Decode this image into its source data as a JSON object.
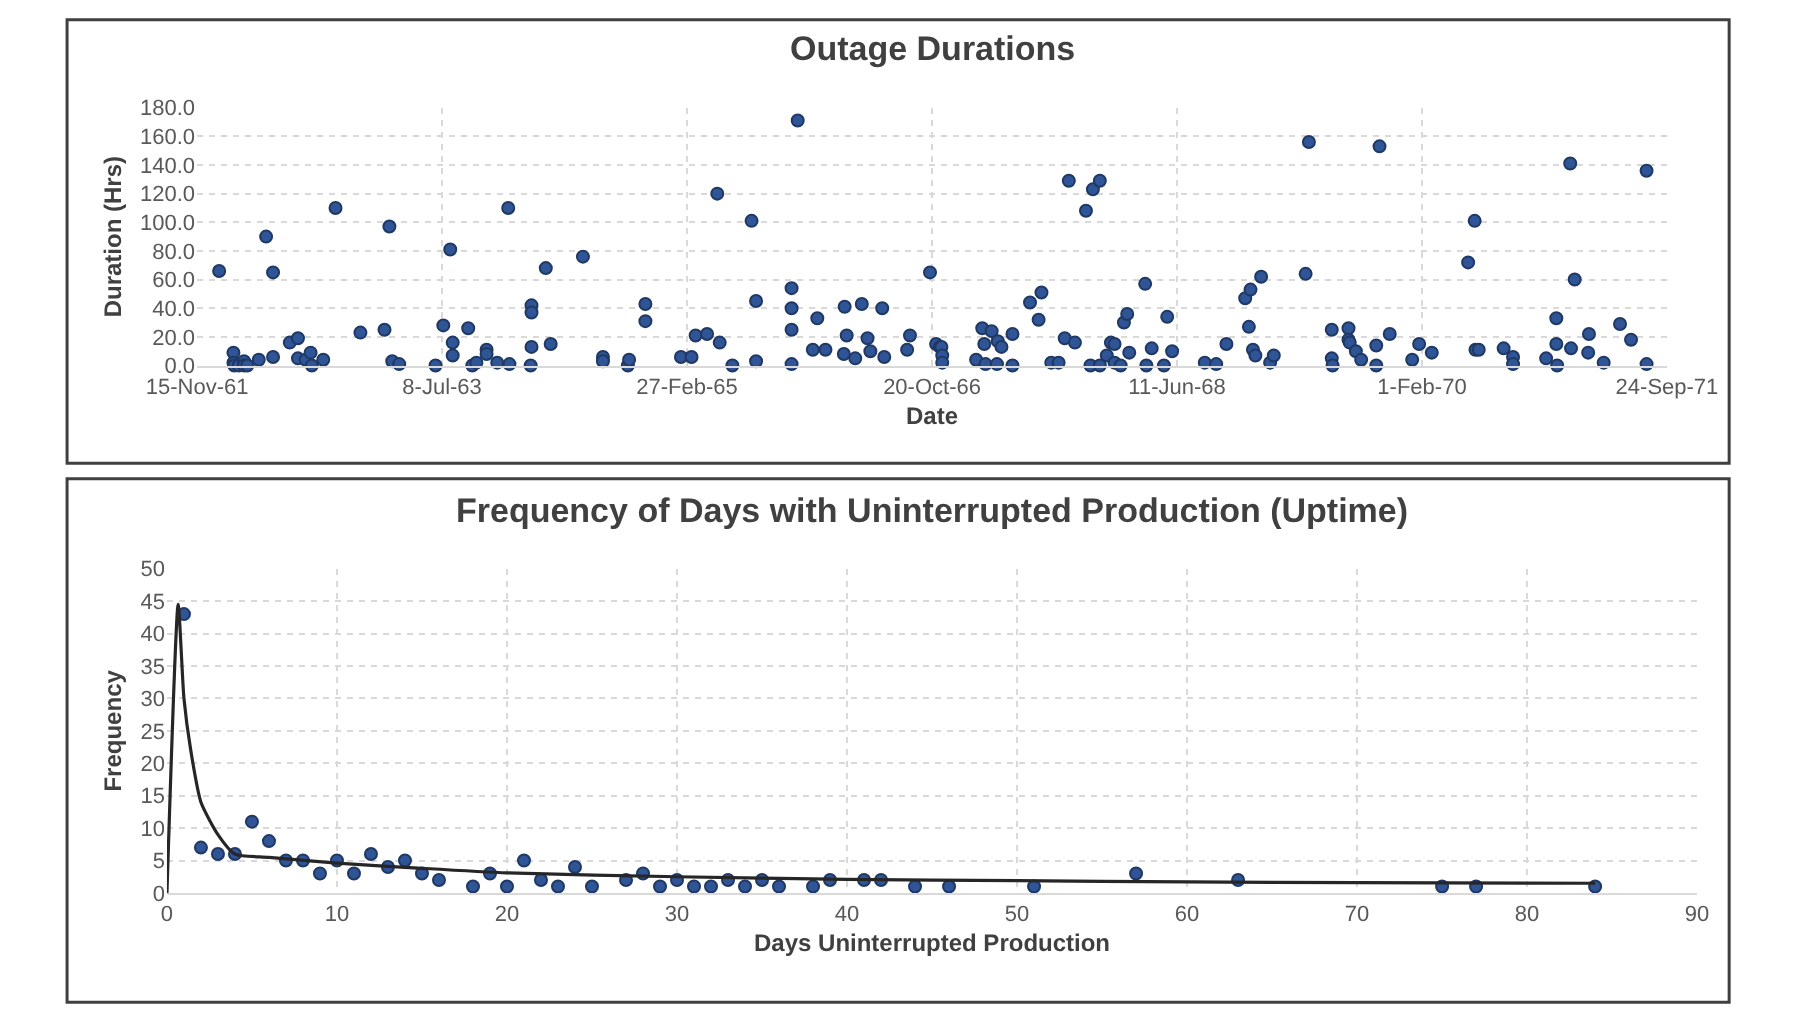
{
  "chart_data": [
    {
      "type": "scatter",
      "title": "Outage Durations",
      "xlabel": "Date",
      "ylabel": "Duration (Hrs)",
      "xlim": [
        "1961-11-15",
        "1971-09-24"
      ],
      "xticks": [
        {
          "value": "1961-11-15",
          "label": "15-Nov-61"
        },
        {
          "value": "1963-07-08",
          "label": "8-Jul-63"
        },
        {
          "value": "1965-02-27",
          "label": "27-Feb-65"
        },
        {
          "value": "1966-10-20",
          "label": "20-Oct-66"
        },
        {
          "value": "1968-06-11",
          "label": "11-Jun-68"
        },
        {
          "value": "1970-02-01",
          "label": "1-Feb-70"
        },
        {
          "value": "1971-09-24",
          "label": "24-Sep-71"
        }
      ],
      "ylim": [
        0,
        180
      ],
      "yticks": [
        {
          "value": 0,
          "label": "0.0"
        },
        {
          "value": 20,
          "label": "20.0"
        },
        {
          "value": 40,
          "label": "40.0"
        },
        {
          "value": 60,
          "label": "60.0"
        },
        {
          "value": 80,
          "label": "80.0"
        },
        {
          "value": 100,
          "label": "100.0"
        },
        {
          "value": 120,
          "label": "120.0"
        },
        {
          "value": 140,
          "label": "140.0"
        },
        {
          "value": 160,
          "label": "160.0"
        },
        {
          "value": 180,
          "label": "180.0"
        }
      ],
      "grid": true,
      "marker": "circle",
      "series": [
        {
          "color": "#2f5597",
          "x": [
            "1962-01-08",
            "1962-02-12",
            "1962-02-12",
            "1962-02-14",
            "1962-02-25",
            "1962-03-10",
            "1962-03-10",
            "1962-03-18",
            "1962-04-15",
            "1962-05-03",
            "1962-05-20",
            "1962-05-20",
            "1962-06-30",
            "1962-07-20",
            "1962-07-20",
            "1962-08-08",
            "1962-08-20",
            "1962-08-23",
            "1962-09-20",
            "1962-10-20",
            "1962-12-20",
            "1963-02-17",
            "1963-03-01",
            "1963-03-08",
            "1963-03-25",
            "1963-06-22",
            "1963-07-11",
            "1963-07-28",
            "1963-08-03",
            "1963-08-03",
            "1963-09-10",
            "1963-09-20",
            "1963-09-30",
            "1963-10-25",
            "1963-10-25",
            "1963-11-20",
            "1963-12-17",
            "1963-12-20",
            "1964-02-10",
            "1964-02-12",
            "1964-02-12",
            "1964-02-12",
            "1964-03-18",
            "1964-03-30",
            "1964-06-17",
            "1964-08-05",
            "1964-08-05",
            "1964-10-05",
            "1964-10-08",
            "1964-11-17",
            "1964-11-17",
            "1965-02-12",
            "1965-03-10",
            "1965-03-20",
            "1965-04-17",
            "1965-05-12",
            "1965-05-18",
            "1965-06-18",
            "1965-08-04",
            "1965-08-15",
            "1965-08-15",
            "1965-11-10",
            "1965-11-10",
            "1965-11-10",
            "1965-11-10",
            "1965-11-25",
            "1966-01-12",
            "1966-01-01",
            "1966-02-01",
            "1966-03-18",
            "1966-03-20",
            "1966-03-25",
            "1966-04-15",
            "1966-05-01",
            "1966-05-15",
            "1966-05-22",
            "1966-06-20",
            "1966-06-25",
            "1966-08-20",
            "1966-08-27",
            "1966-10-15",
            "1966-10-30",
            "1966-11-08",
            "1966-11-12",
            "1966-11-14",
            "1966-11-14",
            "1967-02-05",
            "1967-02-20",
            "1967-02-25",
            "1967-02-28",
            "1967-03-15",
            "1967-03-28",
            "1967-03-30",
            "1967-04-08",
            "1967-05-05",
            "1967-05-05",
            "1967-06-17",
            "1967-07-08",
            "1967-07-15",
            "1967-08-08",
            "1967-08-26",
            "1967-09-10",
            "1967-09-20",
            "1967-10-05",
            "1967-11-01",
            "1967-11-12",
            "1967-11-18",
            "1967-12-05",
            "1967-12-05",
            "1967-12-22",
            "1968-01-01",
            "1968-01-10",
            "1968-01-10",
            "1968-01-25",
            "1968-02-02",
            "1968-02-10",
            "1968-02-15",
            "1968-03-25",
            "1968-03-28",
            "1968-04-10",
            "1968-05-10",
            "1968-05-18",
            "1968-05-30",
            "1968-08-18",
            "1968-09-15",
            "1968-10-10",
            "1968-11-25",
            "1968-12-04",
            "1968-12-08",
            "1968-12-14",
            "1968-12-20",
            "1969-01-03",
            "1969-01-25",
            "1969-02-03",
            "1969-04-22",
            "1969-04-30",
            "1969-06-25",
            "1969-06-25",
            "1969-06-27",
            "1969-08-05",
            "1969-08-05",
            "1969-08-08",
            "1969-08-23",
            "1969-09-05",
            "1969-10-12",
            "1969-10-12",
            "1969-10-20",
            "1969-11-14",
            "1970-01-08",
            "1970-01-25",
            "1970-02-25",
            "1970-05-25",
            "1970-06-10",
            "1970-06-12",
            "1970-06-20",
            "1970-08-20",
            "1970-09-12",
            "1970-09-12",
            "1970-12-02",
            "1970-12-27",
            "1970-12-27",
            "1970-12-29",
            "1971-01-30",
            "1971-02-01",
            "1971-02-10",
            "1971-03-15",
            "1971-03-17",
            "1971-04-22",
            "1971-06-01",
            "1971-06-28",
            "1971-08-05",
            "1971-08-05"
          ],
          "values": [
            66,
            9,
            2,
            0,
            0,
            3,
            0,
            0,
            4,
            90,
            6,
            65,
            16,
            19,
            5,
            4,
            9,
            0,
            4,
            110,
            23,
            25,
            97,
            3,
            1,
            0,
            28,
            81,
            16,
            7,
            26,
            0,
            2,
            11,
            8,
            2,
            110,
            1,
            0,
            42,
            37,
            13,
            68,
            15,
            76,
            6,
            3,
            0,
            4,
            43,
            31,
            6,
            6,
            21,
            22,
            120,
            16,
            0,
            101,
            45,
            3,
            54,
            40,
            25,
            1,
            171,
            33,
            11,
            11,
            8,
            41,
            21,
            5,
            43,
            19,
            10,
            40,
            6,
            11,
            21,
            65,
            15,
            13,
            13,
            7,
            2,
            4,
            26,
            15,
            1,
            24,
            1,
            17,
            13,
            22,
            0,
            44,
            32,
            51,
            2,
            2,
            19,
            129,
            16,
            108,
            0,
            123,
            129,
            0,
            7,
            16,
            15,
            2,
            0,
            30,
            36,
            9,
            57,
            0,
            12,
            0,
            34,
            10,
            2,
            1,
            15,
            47,
            27,
            53,
            11,
            7,
            62,
            2,
            7,
            64,
            156,
            25,
            5,
            0,
            26,
            18,
            16,
            10,
            4,
            14,
            0,
            153,
            22,
            4,
            15,
            9,
            72,
            101,
            11,
            11,
            12,
            6,
            1,
            5,
            33,
            15,
            0,
            141,
            12,
            60,
            9,
            22,
            2,
            29,
            18,
            136,
            1
          ]
        }
      ]
    },
    {
      "type": "scatter",
      "title": "Frequency of Days with Uninterrupted Production (Uptime)",
      "xlabel": "Days Uninterrupted Production",
      "ylabel": "Frequency",
      "xlim": [
        0,
        90
      ],
      "xticks": [
        0,
        10,
        20,
        30,
        40,
        50,
        60,
        70,
        80,
        90
      ],
      "ylim": [
        0,
        50
      ],
      "yticks": [
        0,
        5,
        10,
        15,
        20,
        25,
        30,
        35,
        40,
        45,
        50
      ],
      "grid": true,
      "marker": "circle",
      "series": [
        {
          "color": "#2f5597",
          "x": [
            1,
            2,
            3,
            4,
            5,
            6,
            7,
            8,
            9,
            10,
            11,
            12,
            13,
            14,
            15,
            16,
            18,
            19,
            20,
            21,
            22,
            23,
            24,
            25,
            27,
            28,
            29,
            30,
            31,
            32,
            33,
            34,
            35,
            36,
            38,
            39,
            41,
            42,
            44,
            46,
            51,
            57,
            63,
            75,
            77,
            84
          ],
          "values": [
            43,
            7,
            6,
            6,
            11,
            8,
            5,
            5,
            3,
            5,
            3,
            6,
            4,
            5,
            3,
            2,
            1,
            3,
            1,
            5,
            2,
            1,
            4,
            1,
            2,
            3,
            1,
            2,
            1,
            1,
            2,
            1,
            2,
            1,
            1,
            2,
            2,
            2,
            1,
            1,
            1,
            3,
            2,
            1,
            1,
            1
          ]
        },
        {
          "type": "line",
          "marker": "none",
          "color": "#262626",
          "x": [
            0,
            0.66,
            1,
            1.4,
            2,
            3,
            4,
            6,
            10,
            15,
            20,
            30,
            40,
            50,
            60,
            70,
            84
          ],
          "values": [
            0,
            44.5,
            30,
            22,
            14,
            9,
            6,
            5.5,
            4.6,
            3.8,
            3.1,
            2.5,
            2.1,
            1.9,
            1.7,
            1.6,
            1.5
          ]
        }
      ]
    }
  ]
}
